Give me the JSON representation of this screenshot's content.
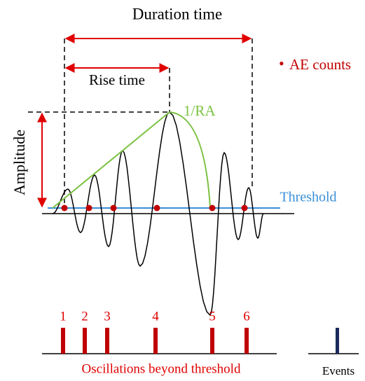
{
  "title": "Duration time",
  "rise_time": "Rise time",
  "legend": {
    "marker": "•",
    "label": "AE counts"
  },
  "slope_label": "1/RA",
  "amplitude_label": "Amplitude",
  "threshold_label": "Threshold",
  "counts": [
    "1",
    "2",
    "3",
    "4",
    "5",
    "6"
  ],
  "counts_caption": "Oscillations beyond threshold",
  "events_caption": "Events"
}
